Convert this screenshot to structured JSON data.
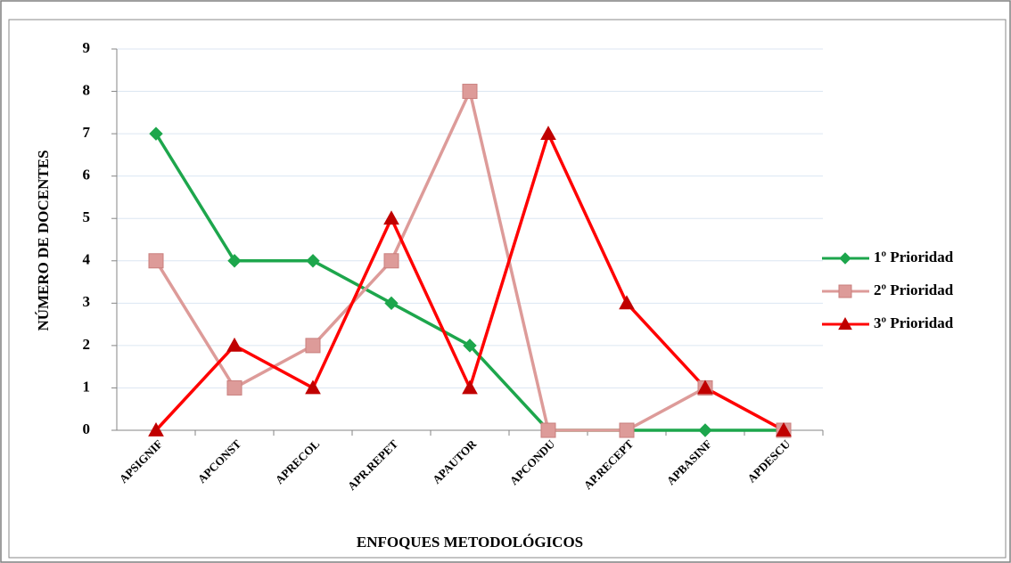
{
  "chart_data": {
    "type": "line",
    "categories": [
      "APSIGNIF",
      "APCONST",
      "APRECOL",
      "APR.REPET",
      "APAUTOR",
      "APCONDU",
      "AP.RECEPT",
      "APBASINF",
      "APDESCU"
    ],
    "series": [
      {
        "name": "1º Prioridad",
        "color": "#1da64c",
        "marker": "diamond",
        "values": [
          7,
          4,
          4,
          3,
          2,
          0,
          0,
          0,
          0
        ]
      },
      {
        "name": "2º Prioridad",
        "color": "#dd9b99",
        "marker": "square",
        "values": [
          4,
          1,
          2,
          4,
          8,
          0,
          0,
          1,
          0
        ]
      },
      {
        "name": "3º Prioridad",
        "color": "#ff0000",
        "marker": "triangle",
        "values": [
          0,
          2,
          1,
          5,
          1,
          7,
          3,
          1,
          0
        ]
      }
    ],
    "ylim": [
      0,
      9
    ],
    "yticks": [
      0,
      1,
      2,
      3,
      4,
      5,
      6,
      7,
      8,
      9
    ],
    "grid": true,
    "legend": "right",
    "ylabel": "NÚMERO DE DOCENTES",
    "xlabel": "ENFOQUES METODOLÓGICOS"
  }
}
